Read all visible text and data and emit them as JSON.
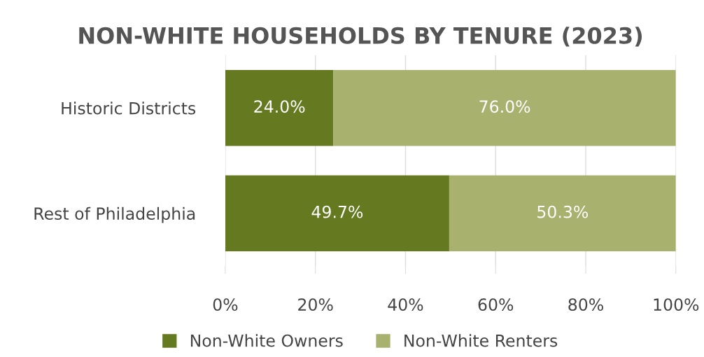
{
  "chart_data": {
    "type": "bar",
    "title": "NON-WHITE HOUSEHOLDS BY TENURE (2023)",
    "orientation": "horizontal",
    "stacked": true,
    "categories": [
      "Historic Districts",
      "Rest of Philadelphia"
    ],
    "series": [
      {
        "name": "Non-White Owners",
        "color": "#657a20",
        "values": [
          24.0,
          49.7
        ],
        "value_labels": [
          "24.0%",
          "49.7%"
        ]
      },
      {
        "name": "Non-White Renters",
        "color": "#a9b16f",
        "values": [
          76.0,
          50.3
        ],
        "value_labels": [
          "76.0%",
          "50.3%"
        ]
      }
    ],
    "xlim": [
      0,
      100
    ],
    "xticks": [
      {
        "value": 0,
        "label": "0%"
      },
      {
        "value": 20,
        "label": "20%"
      },
      {
        "value": 40,
        "label": "40%"
      },
      {
        "value": 60,
        "label": "60%"
      },
      {
        "value": 80,
        "label": "80%"
      },
      {
        "value": 100,
        "label": "100%"
      }
    ],
    "grid": "x",
    "legend": "bottom"
  }
}
